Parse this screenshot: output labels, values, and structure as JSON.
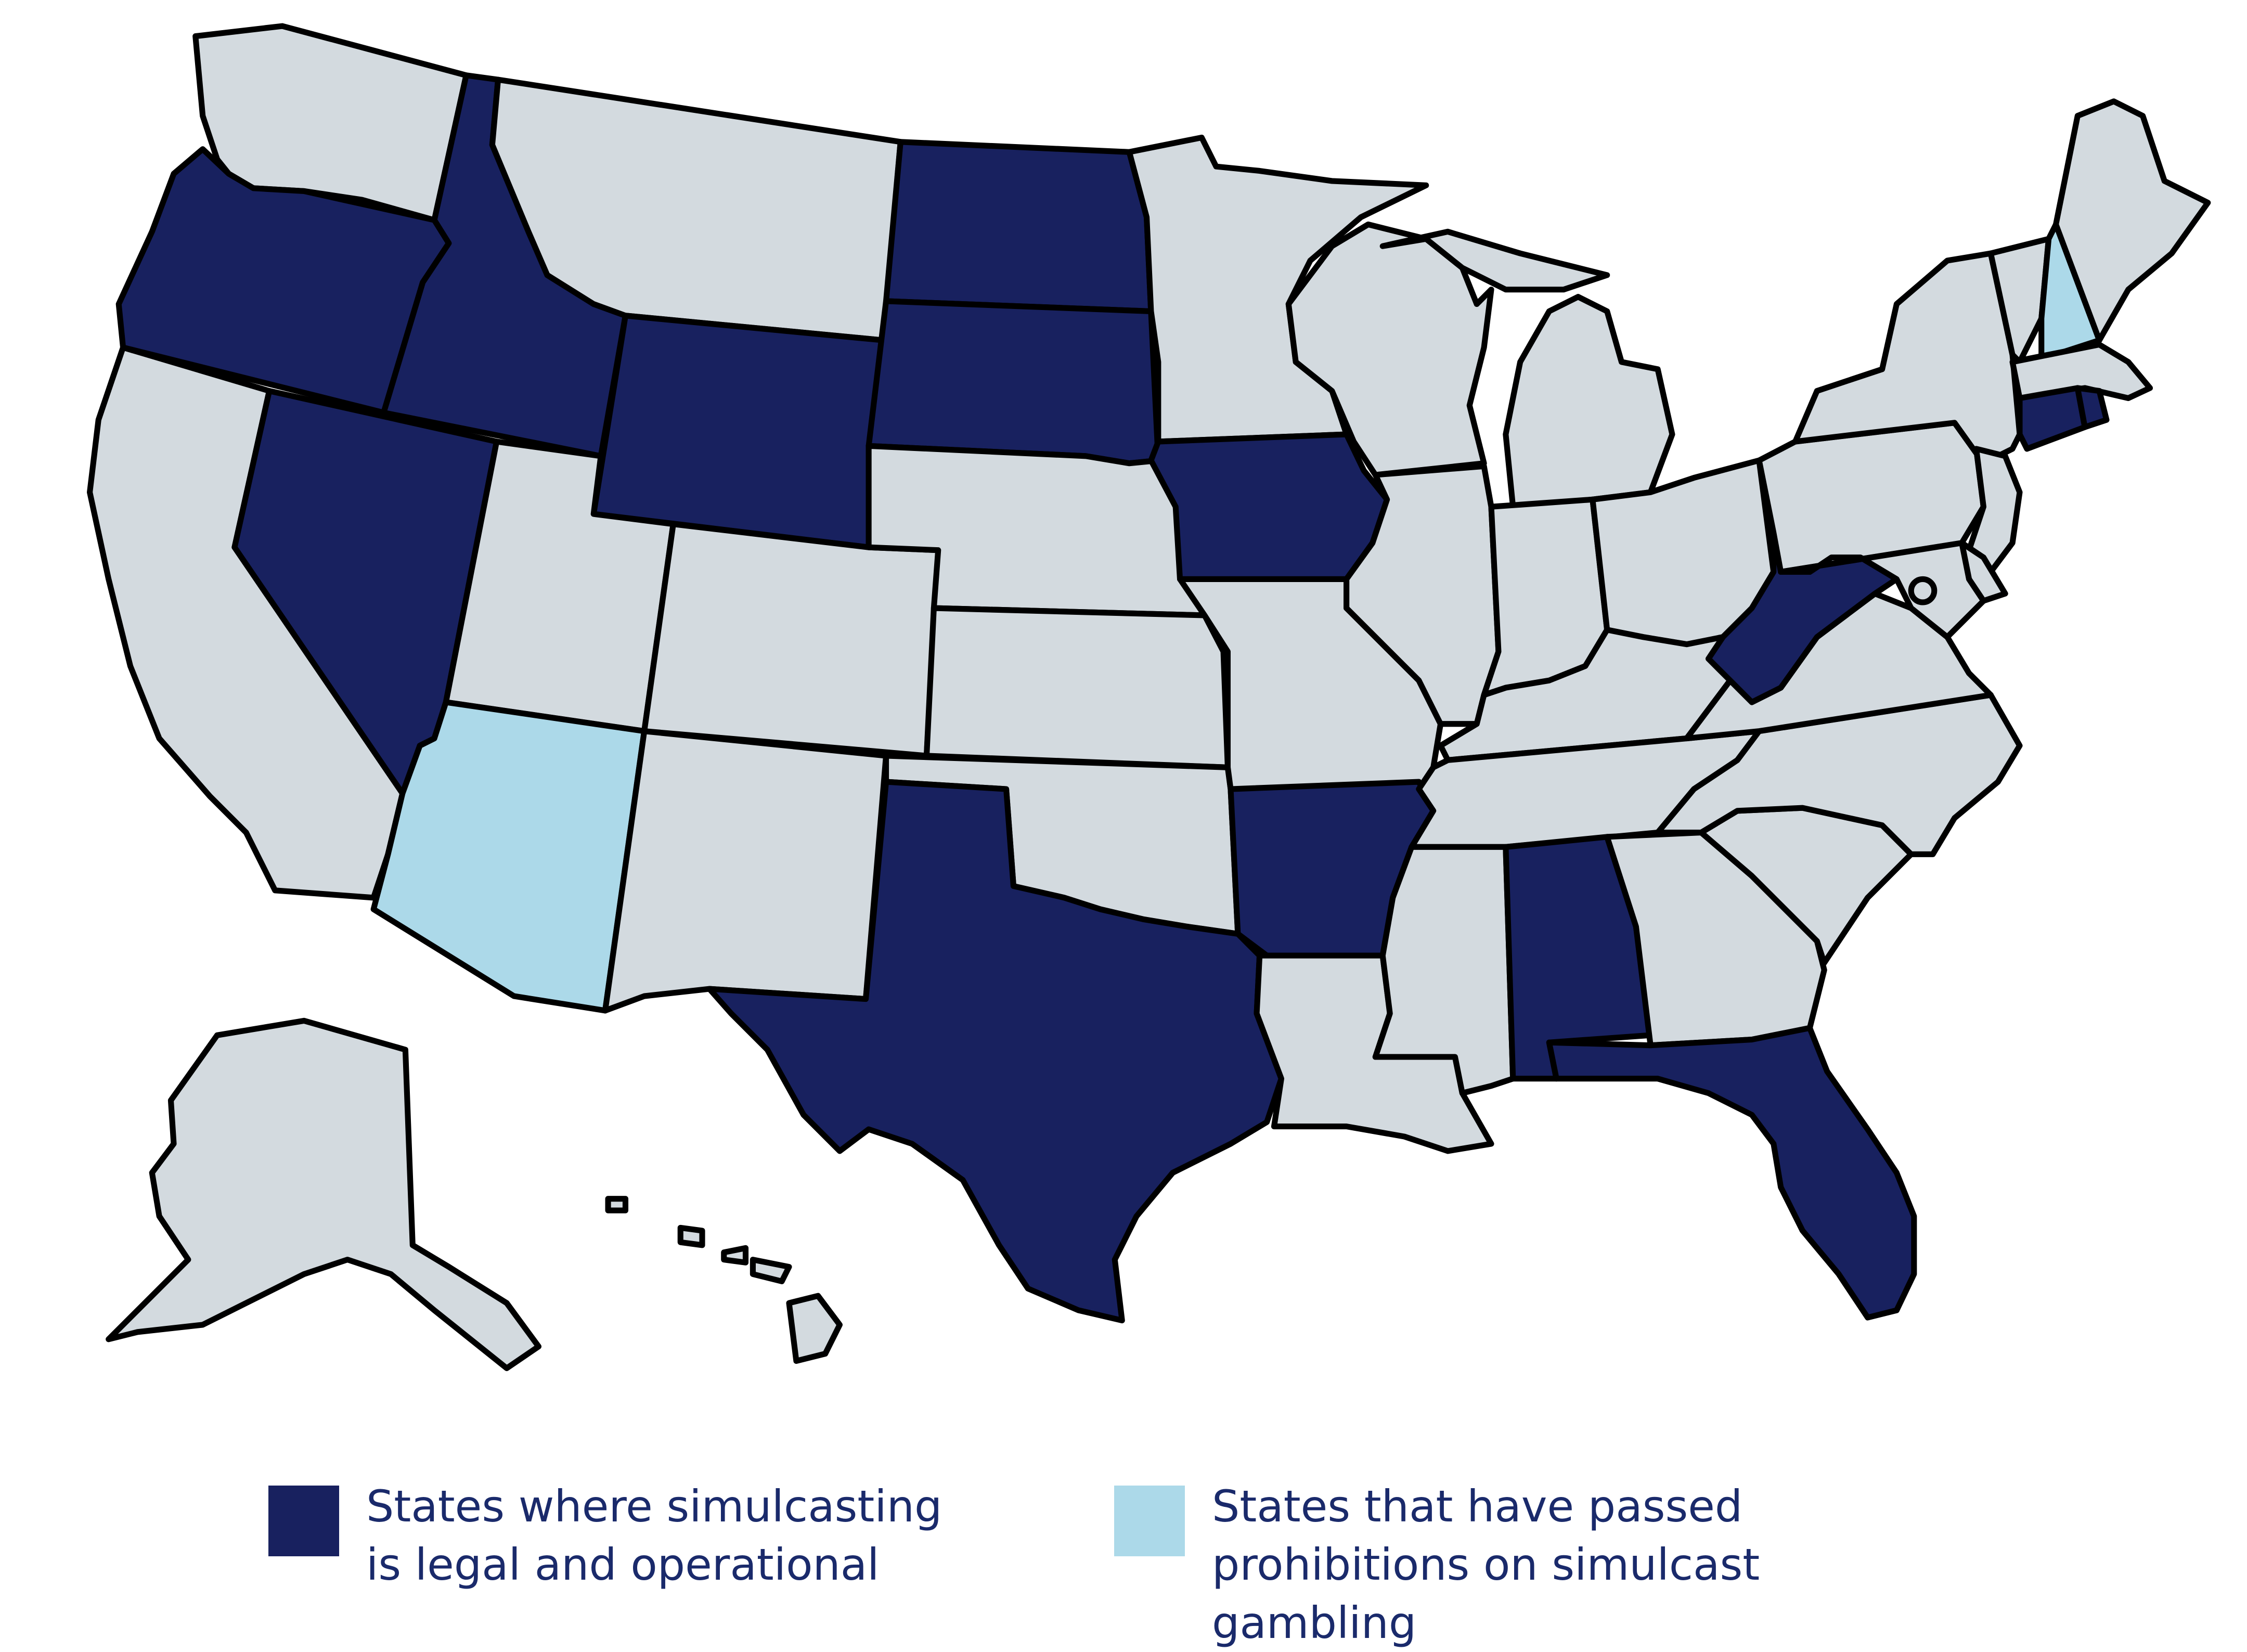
{
  "colors": {
    "legal_operational": "#18215f",
    "prohibited": "#acd9e9",
    "other": "#d3dadf",
    "legend_text": "#1a2a6b",
    "border": "#000000"
  },
  "states": {
    "WA": "other",
    "OR": "legal_operational",
    "CA": "other",
    "ID": "legal_operational",
    "NV": "legal_operational",
    "MT": "other",
    "WY": "legal_operational",
    "UT": "other",
    "AZ": "prohibited",
    "CO": "other",
    "NM": "other",
    "ND": "legal_operational",
    "SD": "legal_operational",
    "NE": "other",
    "KS": "other",
    "OK": "other",
    "TX": "legal_operational",
    "MN": "other",
    "IA": "legal_operational",
    "MO": "other",
    "AR": "legal_operational",
    "LA": "other",
    "WI": "other",
    "IL": "other",
    "MI": "other",
    "IN": "other",
    "OH": "other",
    "KY": "other",
    "TN": "other",
    "MS": "other",
    "AL": "legal_operational",
    "GA": "other",
    "FL": "legal_operational",
    "SC": "other",
    "NC": "other",
    "VA": "other",
    "WV": "legal_operational",
    "PA": "other",
    "NY": "other",
    "VT": "other",
    "NH": "prohibited",
    "ME": "other",
    "MA": "other",
    "CT": "legal_operational",
    "RI": "legal_operational",
    "NJ": "other",
    "DE": "other",
    "MD": "other",
    "DC": "other",
    "AK": "other",
    "HI": "other"
  },
  "legend": [
    {
      "category": "legal_operational",
      "label": "States where simulcasting is legal and operational"
    },
    {
      "category": "prohibited",
      "label": "States that have passed prohibitions on simulcast gambling"
    }
  ]
}
